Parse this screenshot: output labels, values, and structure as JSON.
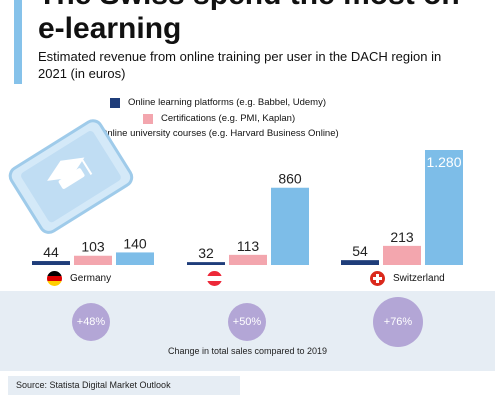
{
  "header": {
    "title": "The Swiss spend the most on e-learning",
    "subtitle": "Estimated revenue from online training per user in the DACH region in 2021 (in euros)"
  },
  "colors": {
    "accent": "#86c2ea",
    "series": [
      "#1f3d7a",
      "#f3a6ae",
      "#7dbde8"
    ],
    "bubble": "#b3a6d6",
    "band": "#e6edf4"
  },
  "chart_data": {
    "type": "bar",
    "categories": [
      "Germany",
      "Austria",
      "Switzerland"
    ],
    "series": [
      {
        "name": "Online learning platforms (e.g. Babbel, Udemy)",
        "values": [
          44,
          32,
          54
        ]
      },
      {
        "name": "Certifications (e.g. PMI, Kaplan)",
        "values": [
          103,
          113,
          213
        ]
      },
      {
        "name": "Online university courses (e.g. Harvard Business Online)",
        "values": [
          140,
          860,
          1280
        ]
      }
    ],
    "value_labels": [
      [
        "44",
        "103",
        "140"
      ],
      [
        "32",
        "113",
        "860"
      ],
      [
        "54",
        "213",
        "1.280"
      ]
    ],
    "category_labels": [
      "Germany",
      "",
      "Switzerland"
    ],
    "ylim": [
      0,
      1280
    ],
    "grid": false
  },
  "growth": {
    "values": [
      "+48%",
      "+50%",
      "+76%"
    ],
    "percent": [
      48,
      50,
      76
    ],
    "caption": "Change in total sales compared to 2019"
  },
  "source": "Source: Statista Digital Market Outlook"
}
